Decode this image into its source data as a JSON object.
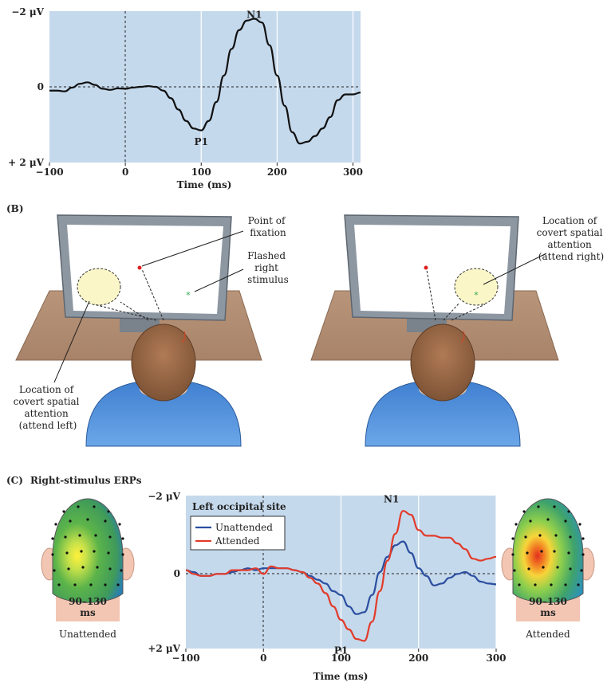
{
  "chart_data": [
    {
      "type": "line",
      "panel": "A",
      "ylabel_top": "−2 μV",
      "ylabel_zero": "0",
      "ylabel_bottom": "+ 2 μV",
      "xlabel": "Time (ms)",
      "xlim": [
        -100,
        310
      ],
      "ylim": [
        -2,
        2
      ],
      "y_inverted": true,
      "x_ticks": [
        "−100",
        "0",
        "100",
        "200",
        "300"
      ],
      "x_tick_values": [
        -100,
        0,
        100,
        200,
        300
      ],
      "annotations": [
        {
          "text": "N1",
          "x": 170,
          "y": -1.7
        },
        {
          "text": "P1",
          "x": 100,
          "y": 1.2
        }
      ],
      "series": [
        {
          "color": "#111111",
          "x": [
            -100,
            -90,
            -80,
            -70,
            -60,
            -50,
            -40,
            -30,
            -20,
            -10,
            0,
            10,
            20,
            30,
            40,
            50,
            60,
            70,
            80,
            90,
            100,
            110,
            120,
            130,
            140,
            150,
            160,
            170,
            180,
            190,
            200,
            210,
            220,
            230,
            240,
            250,
            260,
            270,
            280,
            290,
            300,
            310
          ],
          "y": [
            0.1,
            0.1,
            0.12,
            0.02,
            -0.08,
            -0.12,
            -0.05,
            0.05,
            0.08,
            0.04,
            0.05,
            0.02,
            0,
            -0.02,
            0,
            0.1,
            0.3,
            0.6,
            0.9,
            1.1,
            1.15,
            0.9,
            0.4,
            -0.3,
            -1.0,
            -1.5,
            -1.75,
            -1.8,
            -1.7,
            -1.1,
            -0.3,
            0.5,
            1.2,
            1.5,
            1.45,
            1.3,
            1.1,
            0.8,
            0.35,
            0.2,
            0.2,
            0.15
          ]
        }
      ]
    },
    {
      "type": "line",
      "panel": "C",
      "title": "Left occipital site",
      "ylabel_top": "−2 μV",
      "ylabel_zero": "0",
      "ylabel_bottom": "+2 μV",
      "xlabel": "Time (ms)",
      "xlim": [
        -100,
        300
      ],
      "ylim": [
        -2,
        2
      ],
      "y_inverted": true,
      "x_ticks": [
        "−100",
        "0",
        "100",
        "200",
        "300"
      ],
      "x_tick_values": [
        -100,
        0,
        100,
        200,
        300
      ],
      "annotations": [
        {
          "text": "N1",
          "x": 165,
          "y": -1.7
        },
        {
          "text": "P1",
          "x": 100,
          "y": 1.8
        }
      ],
      "series": [
        {
          "name": "Unattended",
          "color": "#2b4fa0",
          "x": [
            -100,
            -90,
            -80,
            -70,
            -60,
            -50,
            -40,
            -30,
            -20,
            -10,
            0,
            10,
            20,
            30,
            40,
            50,
            60,
            70,
            80,
            90,
            100,
            110,
            120,
            130,
            140,
            150,
            160,
            170,
            180,
            190,
            200,
            210,
            220,
            230,
            240,
            250,
            260,
            270,
            280,
            290,
            300
          ],
          "y": [
            -0.05,
            0,
            0.1,
            0.1,
            0.05,
            0.05,
            0,
            -0.05,
            -0.1,
            -0.05,
            -0.1,
            -0.1,
            -0.1,
            -0.1,
            -0.05,
            0,
            0.1,
            0.2,
            0.3,
            0.5,
            0.6,
            0.9,
            1.1,
            1.05,
            0.6,
            0.0,
            -0.4,
            -0.7,
            -0.8,
            -0.5,
            -0.1,
            0.1,
            0.35,
            0.3,
            0.15,
            0.05,
            0.0,
            0.1,
            0.25,
            0.3,
            0.32
          ]
        },
        {
          "name": "Attended",
          "color": "#e23b2a",
          "x": [
            -100,
            -90,
            -80,
            -70,
            -60,
            -50,
            -40,
            -30,
            -20,
            -10,
            0,
            10,
            20,
            30,
            40,
            50,
            60,
            70,
            80,
            90,
            100,
            110,
            120,
            130,
            140,
            150,
            160,
            170,
            180,
            190,
            200,
            210,
            220,
            230,
            240,
            250,
            260,
            270,
            280,
            290,
            300
          ],
          "y": [
            -0.05,
            0.05,
            0.1,
            0.1,
            0.05,
            0.05,
            -0.05,
            -0.05,
            -0.05,
            -0.1,
            0.05,
            -0.15,
            -0.1,
            -0.1,
            -0.05,
            0,
            0.15,
            0.3,
            0.55,
            0.9,
            1.25,
            1.5,
            1.75,
            1.8,
            1.3,
            0.5,
            -0.3,
            -1.0,
            -1.6,
            -1.5,
            -1.1,
            -0.95,
            -0.95,
            -0.9,
            -0.9,
            -0.75,
            -0.6,
            -0.35,
            -0.3,
            -0.35,
            -0.4
          ]
        }
      ],
      "legend": [
        "Unattended",
        "Attended"
      ],
      "legend_placement": "top-left"
    }
  ],
  "panel_b": {
    "label": "(B)",
    "left": {
      "point_of_fixation": [
        "Point of",
        "fixation"
      ],
      "flashed_stimulus": [
        "Flashed",
        "right",
        "stimulus"
      ],
      "attention_location": [
        "Location of",
        "covert spatial",
        "attention",
        "(attend left)"
      ]
    },
    "right": {
      "attention_location": [
        "Location of",
        "covert spatial",
        "attention",
        "(attend right)"
      ]
    },
    "colors": {
      "fixation_dot": "#e02020",
      "stimulus": "#2fa84f",
      "attention_circle": "#fbf6c8"
    }
  },
  "panel_c": {
    "label": "(C)",
    "title": "Right-stimulus ERPs",
    "left_head": {
      "time": [
        "90–130",
        "ms"
      ],
      "caption": "Unattended"
    },
    "right_head": {
      "time": [
        "90–130",
        "ms"
      ],
      "caption": "Attended"
    }
  }
}
